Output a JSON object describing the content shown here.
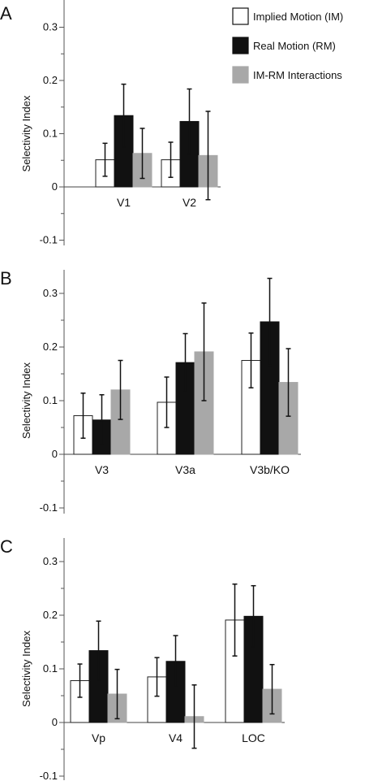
{
  "legend": [
    {
      "label": "Implied Motion (IM)",
      "color": "#ffffff"
    },
    {
      "label": "Real Motion (RM)",
      "color": "#111111"
    },
    {
      "label": "IM-RM Interactions",
      "color": "#a8a8a8"
    }
  ],
  "chart_data": [
    {
      "panel": "A",
      "type": "bar",
      "ylabel": "Selectivity Index",
      "ylim": [
        -0.1,
        0.3
      ],
      "yticks": [
        "0.3",
        "0.2",
        "0.1",
        "0",
        "-0.1"
      ],
      "categories": [
        "V1",
        "V2"
      ],
      "series": [
        {
          "name": "Implied Motion (IM)",
          "values": [
            0.051,
            0.051
          ],
          "errors": [
            0.031,
            0.033
          ]
        },
        {
          "name": "Real Motion (RM)",
          "values": [
            0.134,
            0.123
          ],
          "errors": [
            0.059,
            0.061
          ]
        },
        {
          "name": "IM-RM Interactions",
          "values": [
            0.063,
            0.059
          ],
          "errors": [
            0.047,
            0.083
          ]
        }
      ]
    },
    {
      "panel": "B",
      "type": "bar",
      "ylabel": "Selectivity Index",
      "ylim": [
        -0.1,
        0.3
      ],
      "yticks": [
        "0.3",
        "0.2",
        "0.1",
        "0",
        "-0.1"
      ],
      "categories": [
        "V3",
        "V3a",
        "V3b/KO"
      ],
      "series": [
        {
          "name": "Implied Motion (IM)",
          "values": [
            0.072,
            0.097,
            0.175
          ],
          "errors": [
            0.042,
            0.047,
            0.051
          ]
        },
        {
          "name": "Real Motion (RM)",
          "values": [
            0.064,
            0.171,
            0.247
          ],
          "errors": [
            0.047,
            0.054,
            0.081
          ]
        },
        {
          "name": "IM-RM Interactions",
          "values": [
            0.12,
            0.191,
            0.134
          ],
          "errors": [
            0.055,
            0.091,
            0.063
          ]
        }
      ]
    },
    {
      "panel": "C",
      "type": "bar",
      "ylabel": "Selectivity Index",
      "ylim": [
        -0.1,
        0.3
      ],
      "yticks": [
        "0.3",
        "0.2",
        "0.1",
        "0",
        "-0.1"
      ],
      "categories": [
        "Vp",
        "V4",
        "LOC"
      ],
      "series": [
        {
          "name": "Implied Motion (IM)",
          "values": [
            0.078,
            0.085,
            0.191
          ],
          "errors": [
            0.031,
            0.036,
            0.067
          ]
        },
        {
          "name": "Real Motion (RM)",
          "values": [
            0.134,
            0.114,
            0.198
          ],
          "errors": [
            0.055,
            0.048,
            0.057
          ]
        },
        {
          "name": "IM-RM Interactions",
          "values": [
            0.053,
            0.011,
            0.062
          ],
          "errors": [
            0.046,
            0.059,
            0.046
          ]
        }
      ]
    }
  ]
}
